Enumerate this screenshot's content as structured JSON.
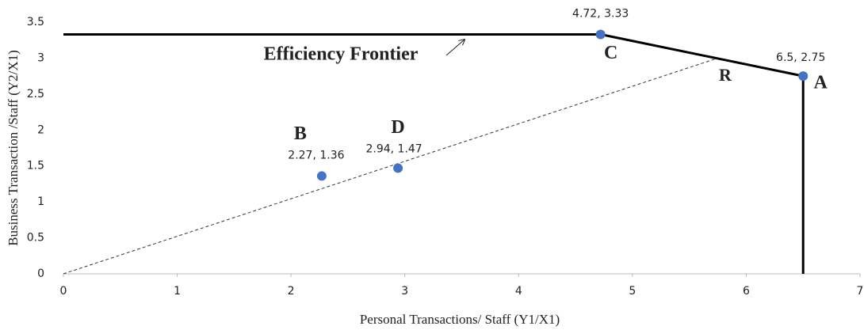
{
  "chart_data": {
    "type": "scatter",
    "x_label": "Personal Transactions/ Staff  (Y1/X1)",
    "y_label": "Business Transaction /Staff (Y2/X1)",
    "xlim": [
      0,
      7
    ],
    "ylim": [
      0,
      3.5
    ],
    "xticks": [
      0,
      1,
      2,
      3,
      4,
      5,
      6,
      7
    ],
    "yticks": [
      0,
      0.5,
      1,
      1.5,
      2,
      2.5,
      3,
      3.5
    ],
    "grid": false,
    "series": [
      {
        "point_names": [
          "A",
          "B",
          "C",
          "D"
        ],
        "color": "#4472c4",
        "x": [
          6.5,
          2.27,
          4.72,
          2.94
        ],
        "values": [
          2.75,
          1.36,
          3.33,
          1.47
        ],
        "value_labels": [
          "6.5, 2.75",
          "2.27, 1.36",
          "4.72, 3.33",
          "2.94, 1.47"
        ]
      }
    ],
    "frontier": {
      "name": "Efficiency Frontier",
      "color": "#000000",
      "x": [
        0,
        4.72,
        6.5,
        6.5
      ],
      "values": [
        3.33,
        3.33,
        2.75,
        0
      ]
    },
    "ray": {
      "name": "R",
      "color": "#333333",
      "x": [
        0,
        5.75
      ],
      "values": [
        0,
        3.0
      ]
    }
  }
}
